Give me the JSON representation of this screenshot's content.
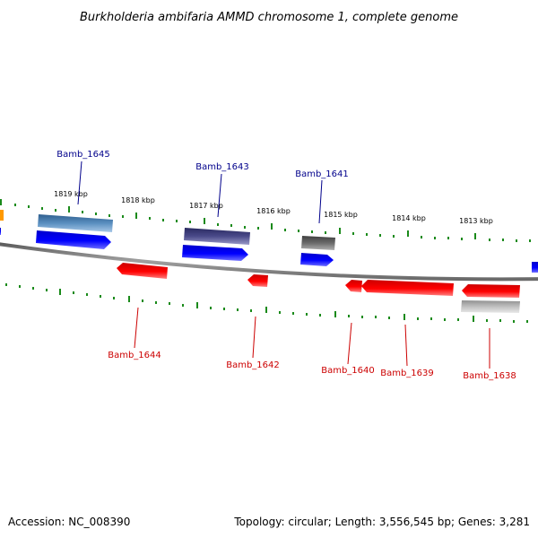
{
  "title": "Burkholderia ambifaria AMMD chromosome 1, complete genome",
  "footer": {
    "accession": "Accession: NC_008390",
    "summary": "Topology: circular; Length: 3,556,545 bp; Genes: 3,281"
  },
  "colors": {
    "backbone": "#8a8a8a",
    "tick": "#1a8a1a",
    "label_forward": "#00008b",
    "label_reverse": "#cc0000",
    "gene_blue": "#0000ee",
    "gene_red": "#ee0000",
    "gene_orange": "#ff8c00"
  },
  "ticks": [
    "1819 kbp",
    "1818 kbp",
    "1817 kbp",
    "1816 kbp",
    "1815 kbp",
    "1814 kbp",
    "1813 kbp"
  ],
  "gene_labels_forward": [
    "Bamb_1645",
    "Bamb_1643",
    "Bamb_1641"
  ],
  "gene_labels_reverse": [
    "Bamb_1644",
    "Bamb_1642",
    "Bamb_1640",
    "Bamb_1639",
    "Bamb_1638"
  ]
}
